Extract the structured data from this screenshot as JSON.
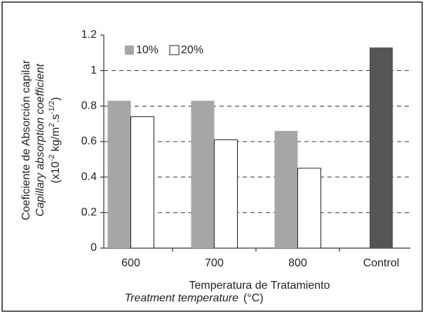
{
  "chart_data": {
    "type": "bar",
    "categories": [
      "600",
      "700",
      "800",
      "Control"
    ],
    "series": [
      {
        "name": "10%",
        "color": "#a6a6a6",
        "values": [
          0.83,
          0.83,
          0.66,
          null
        ]
      },
      {
        "name": "20%",
        "color": "#ffffff",
        "values": [
          0.74,
          0.61,
          0.45,
          null
        ]
      },
      {
        "color": "#555555",
        "values": [
          null,
          null,
          null,
          1.13
        ]
      }
    ],
    "ylim": [
      0,
      1.2
    ],
    "yticks": [
      0,
      0.2,
      0.4,
      0.6,
      0.8,
      1,
      1.2
    ],
    "grid": true,
    "legend": "upper left",
    "y_label": [
      "Coeficiente de Absorción capilar",
      "Capillary absorption coefficient"
    ],
    "y_unit": [
      "(x10",
      "-2",
      " kg/m",
      "2",
      ".s",
      "-1/2",
      ")"
    ],
    "x_label": [
      "Temperatura de Tratamiento",
      "Treatment temperature",
      "(°C)"
    ]
  }
}
